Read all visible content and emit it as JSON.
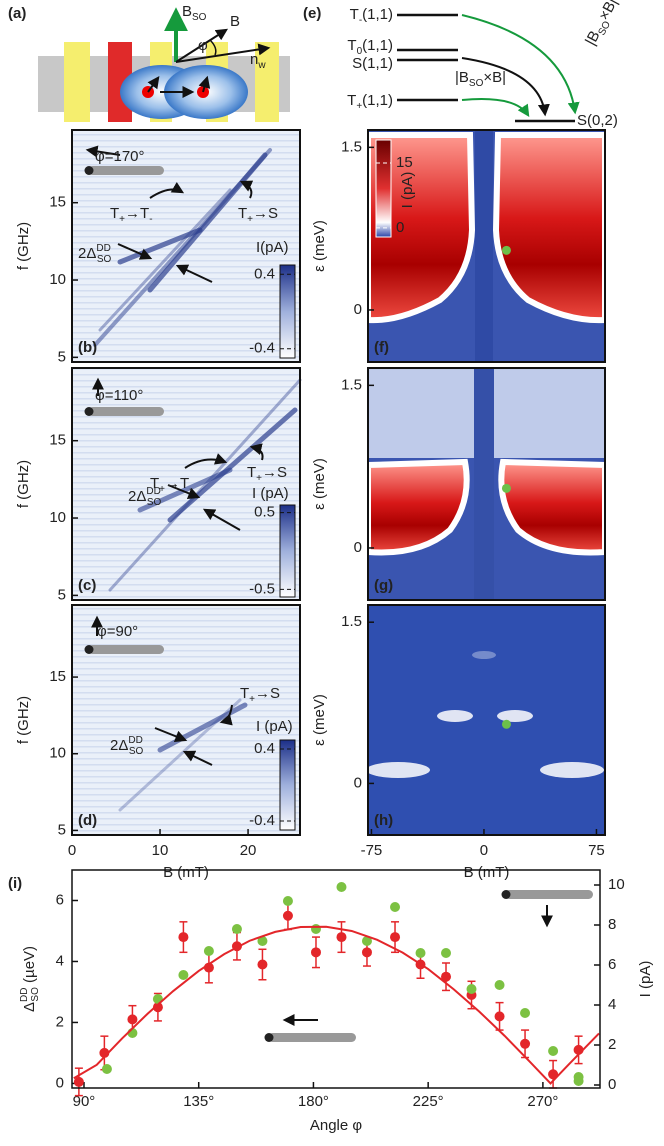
{
  "panel_a": {
    "label": "(a)",
    "b_so": [
      {
        "t": "B"
      },
      {
        "t": "SO",
        "s": "sub"
      }
    ],
    "b": "B",
    "phi": "φ",
    "n_w": [
      {
        "t": "n"
      },
      {
        "t": "w",
        "s": "sub"
      }
    ]
  },
  "panel_e": {
    "label": "(e)",
    "levels": [
      [
        {
          "t": "T"
        },
        {
          "t": "-",
          "s": "sub"
        },
        {
          "t": "(1,1)"
        }
      ],
      [
        {
          "t": "T"
        },
        {
          "t": "0",
          "s": "sub"
        },
        {
          "t": "(1,1)"
        }
      ],
      "S(1,1)",
      [
        {
          "t": "T"
        },
        {
          "t": "+",
          "s": "sub"
        },
        {
          "t": "(1,1)"
        }
      ]
    ],
    "target": "S(0,2)",
    "couplings": [
      [
        {
          "t": "|B"
        },
        {
          "t": "SO",
          "s": "sub"
        },
        {
          "t": "×B|"
        }
      ],
      [
        {
          "t": "|B"
        },
        {
          "t": "SO",
          "s": "sub"
        },
        {
          "t": "×B|"
        }
      ]
    ]
  },
  "chart_data": [
    {
      "type": "heatmap",
      "label": "(b)",
      "ylabel": "f (GHz)",
      "xlim": [
        0,
        25.9
      ],
      "ylim": [
        4.7,
        19.7
      ],
      "yticks": [
        5,
        10,
        15
      ],
      "colorbar": {
        "label": "I(pA)",
        "lim": [
          -0.5,
          0.5
        ],
        "ticks": [
          0.4,
          -0.4
        ]
      },
      "annotations": [
        "φ=170°",
        [
          {
            "t": "T"
          },
          {
            "t": "+",
            "s": "sub"
          },
          {
            "t": "→T"
          },
          {
            "t": "-",
            "s": "sub"
          }
        ],
        [
          {
            "t": "T"
          },
          {
            "t": "+",
            "s": "sub"
          },
          {
            "t": "→S"
          }
        ],
        [
          {
            "t": "2Δ"
          },
          {
            "t": "DD",
            "s": "sup"
          },
          {
            "t": "SO",
            "s": "sub"
          }
        ]
      ]
    },
    {
      "type": "heatmap",
      "label": "(c)",
      "ylabel": "f (GHz)",
      "xlim": [
        0,
        25.9
      ],
      "ylim": [
        4.7,
        19.7
      ],
      "yticks": [
        5,
        10,
        15
      ],
      "colorbar": {
        "label": "I (pA)",
        "lim": [
          -0.6,
          0.6
        ],
        "ticks": [
          0.5,
          -0.5
        ]
      },
      "annotations": [
        "φ=110°",
        [
          {
            "t": "T"
          },
          {
            "t": "+",
            "s": "sub"
          },
          {
            "t": "→T"
          },
          {
            "t": "-",
            "s": "sub"
          }
        ],
        [
          {
            "t": "T"
          },
          {
            "t": "+",
            "s": "sub"
          },
          {
            "t": "→S"
          }
        ],
        [
          {
            "t": "2Δ"
          },
          {
            "t": "DD",
            "s": "sup"
          },
          {
            "t": "SO",
            "s": "sub"
          }
        ]
      ]
    },
    {
      "type": "heatmap",
      "label": "(d)",
      "ylabel": "f (GHz)",
      "xlabel": "B (mT)",
      "xlim": [
        0,
        25.9
      ],
      "ylim": [
        4.7,
        19.7
      ],
      "xticks": [
        0,
        10,
        20
      ],
      "yticks": [
        5,
        10,
        15
      ],
      "colorbar": {
        "label": "I (pA)",
        "lim": [
          -0.5,
          0.5
        ],
        "ticks": [
          0.4,
          -0.4
        ]
      },
      "annotations": [
        "φ=90°",
        [
          {
            "t": "T"
          },
          {
            "t": "+",
            "s": "sub"
          },
          {
            "t": "→S"
          }
        ],
        [
          {
            "t": "2Δ"
          },
          {
            "t": "DD",
            "s": "sup"
          },
          {
            "t": "SO",
            "s": "sub"
          }
        ]
      ]
    },
    {
      "type": "heatmap",
      "label": "(f)",
      "ylabel": "ε (meV)",
      "xlim": [
        -77.3,
        80.7
      ],
      "ylim": [
        -0.48,
        1.66
      ],
      "yticks": [
        0,
        1.5
      ],
      "colorbar": {
        "label": "I (pA)",
        "lim": [
          -2.1,
          20.3
        ],
        "ticks": [
          15,
          0
        ]
      },
      "marker": {
        "x": 15,
        "y": 0.55,
        "color": "#6cc04a"
      }
    },
    {
      "type": "heatmap",
      "label": "(g)",
      "ylabel": "ε (meV)",
      "xlim": [
        -77.3,
        80.7
      ],
      "ylim": [
        -0.48,
        1.66
      ],
      "yticks": [
        0,
        1.5
      ],
      "marker": {
        "x": 15,
        "y": 0.55,
        "color": "#6cc04a"
      }
    },
    {
      "type": "heatmap",
      "label": "(h)",
      "ylabel": "ε (meV)",
      "xlabel": "B (mT)",
      "xlim": [
        -77.3,
        80.7
      ],
      "ylim": [
        -0.48,
        1.66
      ],
      "xticks": [
        -75,
        0,
        75
      ],
      "yticks": [
        0,
        1.5
      ],
      "marker": {
        "x": 15,
        "y": 0.55,
        "color": "#6cc04a"
      }
    },
    {
      "type": "scatter",
      "label": "(i)",
      "xlabel": "Angle φ",
      "ylabel": [
        {
          "t": "Δ"
        },
        {
          "t": "DD",
          "s": "sup"
        },
        {
          "t": "SO",
          "s": "sub"
        },
        {
          "t": " (µeV)"
        }
      ],
      "y2label": "I (pA)",
      "xlim": [
        85.3,
        292.4
      ],
      "ylim": [
        -0.15,
        7
      ],
      "y2lim": [
        -0.15,
        10.75
      ],
      "xticks": [
        {
          "value": 90,
          "label": "90°"
        },
        {
          "value": 135,
          "label": "135°"
        },
        {
          "value": 180,
          "label": "180°"
        },
        {
          "value": 225,
          "label": "225°"
        },
        {
          "value": 270,
          "label": "270°"
        }
      ],
      "yticks": [
        0,
        2,
        4,
        6
      ],
      "y2ticks": [
        0,
        2,
        4,
        6,
        8,
        10
      ],
      "series": [
        {
          "color": "#e3262a",
          "x": [
            88,
            98,
            109,
            119,
            129,
            139,
            150,
            160,
            170,
            181,
            191,
            201,
            212,
            222,
            232,
            242,
            253,
            263,
            274,
            284
          ],
          "values": [
            0.05,
            1.0,
            2.1,
            2.5,
            4.8,
            3.8,
            4.5,
            3.9,
            5.5,
            4.3,
            4.8,
            4.3,
            4.8,
            3.9,
            3.5,
            2.9,
            2.2,
            1.3,
            0.3,
            1.1
          ],
          "errors": [
            0.45,
            0.55,
            0.45,
            0.45,
            0.5,
            0.5,
            0.45,
            0.5,
            0.45,
            0.5,
            0.5,
            0.45,
            0.5,
            0.45,
            0.45,
            0.45,
            0.45,
            0.45,
            0.45,
            0.45
          ]
        },
        {
          "color": "#7cc142",
          "axis": "y2",
          "x": [
            99,
            109,
            119,
            129,
            139,
            150,
            160,
            170,
            181,
            191,
            201,
            212,
            222,
            232,
            242,
            253,
            263,
            274,
            284,
            284
          ],
          "values": [
            0.8,
            2.6,
            4.3,
            5.5,
            6.7,
            7.8,
            7.2,
            9.2,
            7.8,
            9.9,
            7.2,
            8.9,
            6.6,
            6.6,
            4.8,
            5.0,
            3.6,
            1.7,
            0.4,
            0.2
          ]
        },
        {
          "type": "line",
          "color": "#e3262a",
          "x": [
            86,
            95,
            105,
            115,
            125,
            135,
            145,
            155,
            165,
            175,
            185,
            195,
            205,
            215,
            225,
            235,
            245,
            255,
            265,
            273,
            280,
            292
          ],
          "values": [
            0.17,
            0.61,
            1.48,
            2.29,
            3.03,
            3.69,
            4.24,
            4.68,
            4.97,
            5.13,
            5.14,
            5.0,
            4.71,
            4.29,
            3.75,
            3.09,
            2.36,
            1.56,
            0.7,
            0,
            0.61,
            1.64
          ]
        }
      ]
    }
  ]
}
